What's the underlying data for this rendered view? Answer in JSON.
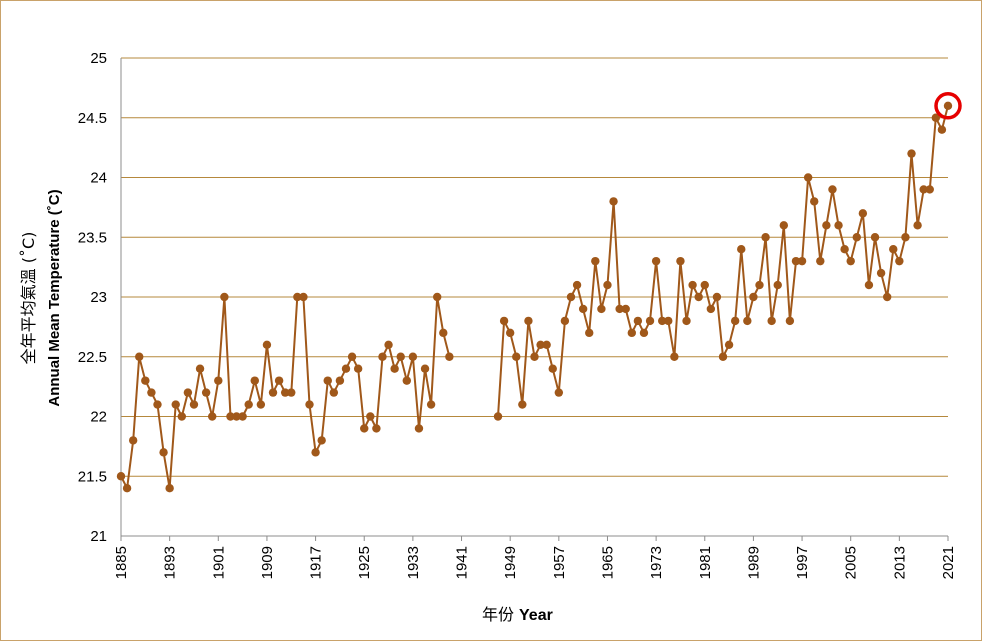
{
  "chart_data": {
    "type": "line",
    "xlabel_zh": "年份",
    "xlabel_en": "Year",
    "ylabel_zh": "全年平均氣溫 (˚C)",
    "ylabel_en": "Annual Mean Temperature (˚C)",
    "xlim": [
      1885,
      2021
    ],
    "ylim": [
      21,
      25
    ],
    "y_ticks": [
      "21",
      "21.5",
      "22",
      "22.5",
      "23",
      "23.5",
      "24",
      "24.5",
      "25"
    ],
    "x_ticks": [
      "1885",
      "1893",
      "1901",
      "1909",
      "1917",
      "1925",
      "1933",
      "1941",
      "1949",
      "1957",
      "1965",
      "1973",
      "1981",
      "1989",
      "1997",
      "2005",
      "2013",
      "2021"
    ],
    "grid": "horizontal",
    "line_color": "#a0581a",
    "highlight_color": "#e60000",
    "highlight_year": 2021,
    "series": [
      {
        "x": [
          1885,
          1886,
          1887,
          1888,
          1889,
          1890,
          1891,
          1892,
          1893,
          1894,
          1895,
          1896,
          1897,
          1898,
          1899,
          1900,
          1901,
          1902,
          1903,
          1904,
          1905,
          1906,
          1907,
          1908,
          1909,
          1910,
          1911,
          1912,
          1913,
          1914,
          1915,
          1916,
          1917,
          1918,
          1919,
          1920,
          1921,
          1922,
          1923,
          1924,
          1925,
          1926,
          1927,
          1928,
          1929,
          1930,
          1931,
          1932,
          1933,
          1934,
          1935,
          1936,
          1937,
          1938,
          1939,
          null,
          1947,
          1948,
          1949,
          1950,
          1951,
          1952,
          1953,
          1954,
          1955,
          1956,
          1957,
          1958,
          1959,
          1960,
          1961,
          1962,
          1963,
          1964,
          1965,
          1966,
          1967,
          1968,
          1969,
          1970,
          1971,
          1972,
          1973,
          1974,
          1975,
          1976,
          1977,
          1978,
          1979,
          1980,
          1981,
          1982,
          1983,
          1984,
          1985,
          1986,
          1987,
          1988,
          1989,
          1990,
          1991,
          1992,
          1993,
          1994,
          1995,
          1996,
          1997,
          1998,
          1999,
          2000,
          2001,
          2002,
          2003,
          2004,
          2005,
          2006,
          2007,
          2008,
          2009,
          2010,
          2011,
          2012,
          2013,
          2014,
          2015,
          2016,
          2017,
          2018,
          2019,
          2020,
          2021
        ],
        "values": [
          21.5,
          21.4,
          21.8,
          22.5,
          22.3,
          22.2,
          22.1,
          21.7,
          21.4,
          22.1,
          22.0,
          22.2,
          22.1,
          22.4,
          22.2,
          22.0,
          22.3,
          23.0,
          22.0,
          22.0,
          22.0,
          22.1,
          22.3,
          22.1,
          22.6,
          22.2,
          22.3,
          22.2,
          22.2,
          23.0,
          23.0,
          22.1,
          21.7,
          21.8,
          22.3,
          22.2,
          22.3,
          22.4,
          22.5,
          22.4,
          21.9,
          22.0,
          21.9,
          22.5,
          22.6,
          22.4,
          22.5,
          22.3,
          22.5,
          21.9,
          22.4,
          22.1,
          23.0,
          22.7,
          22.5,
          null,
          22.0,
          22.8,
          22.7,
          22.5,
          22.1,
          22.8,
          22.5,
          22.6,
          22.6,
          22.4,
          22.2,
          22.8,
          23.0,
          23.1,
          22.9,
          22.7,
          23.3,
          22.9,
          23.1,
          23.8,
          22.9,
          22.9,
          22.7,
          22.8,
          22.7,
          22.8,
          23.3,
          22.8,
          22.8,
          22.5,
          23.3,
          22.8,
          23.1,
          23.0,
          23.1,
          22.9,
          23.0,
          22.5,
          22.6,
          22.8,
          23.4,
          22.8,
          23.0,
          23.1,
          23.5,
          22.8,
          23.1,
          23.6,
          22.8,
          23.3,
          23.3,
          24.0,
          23.8,
          23.3,
          23.6,
          23.9,
          23.6,
          23.4,
          23.3,
          23.5,
          23.7,
          23.1,
          23.5,
          23.2,
          23.0,
          23.4,
          23.3,
          23.5,
          24.2,
          23.6,
          23.9,
          23.9,
          24.5,
          24.4,
          24.6
        ]
      }
    ]
  }
}
